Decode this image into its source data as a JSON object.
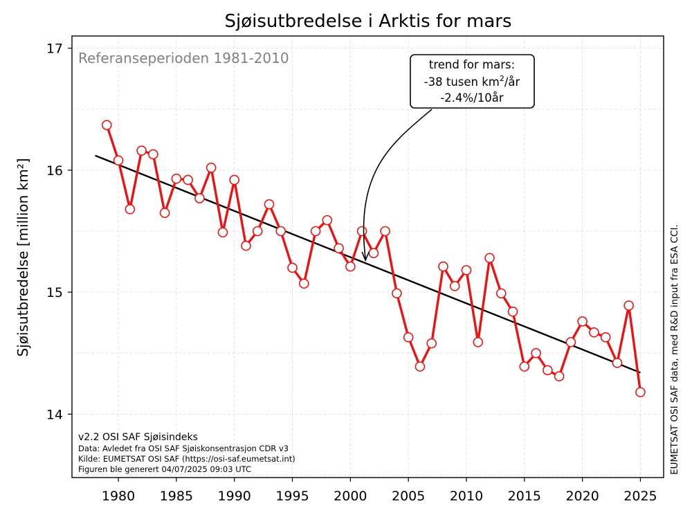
{
  "chart_data": {
    "type": "line",
    "title": "Sjøisutbredelse i Arktis for mars",
    "xlabel": "",
    "ylabel": "Sjøisutbredelse [million km²]",
    "xlim": [
      1976,
      2027
    ],
    "ylim": [
      13.48,
      17.1
    ],
    "xticks": [
      1980,
      1985,
      1990,
      1995,
      2000,
      2005,
      2010,
      2015,
      2020,
      2025
    ],
    "yticks": [
      14,
      15,
      16,
      17
    ],
    "grid": true,
    "reference_text": "Referanseperioden 1981-2010",
    "series": [
      {
        "name": "Sjøisutbredelse mars",
        "color": "#ee1111",
        "x": [
          1979,
          1980,
          1981,
          1982,
          1983,
          1984,
          1985,
          1986,
          1987,
          1988,
          1989,
          1990,
          1991,
          1992,
          1993,
          1994,
          1995,
          1996,
          1997,
          1998,
          1999,
          2000,
          2001,
          2002,
          2003,
          2004,
          2005,
          2006,
          2007,
          2008,
          2009,
          2010,
          2011,
          2012,
          2013,
          2014,
          2015,
          2016,
          2017,
          2018,
          2019,
          2020,
          2021,
          2022,
          2023,
          2024,
          2025
        ],
        "values": [
          16.37,
          16.08,
          15.68,
          16.16,
          16.13,
          15.65,
          15.93,
          15.92,
          15.77,
          16.02,
          15.49,
          15.92,
          15.38,
          15.5,
          15.72,
          15.5,
          15.2,
          15.07,
          15.5,
          15.59,
          15.36,
          15.21,
          15.5,
          15.32,
          15.5,
          14.99,
          14.63,
          14.39,
          14.58,
          15.21,
          15.05,
          15.18,
          14.59,
          15.28,
          14.99,
          14.84,
          14.39,
          14.5,
          14.36,
          14.31,
          14.59,
          14.76,
          14.67,
          14.63,
          14.42,
          14.89,
          14.18
        ]
      }
    ],
    "trend_line": {
      "color": "#000000",
      "x": [
        1978,
        2025
      ],
      "values": [
        16.12,
        14.34
      ]
    },
    "annotation": {
      "line1": "trend for mars:",
      "line2_prefix": "-38 tusen km",
      "line2_sup": "2",
      "line2_suffix": "/år",
      "line3": "-2.4%/10år",
      "target_x": 2001.3,
      "target_y": 15.25
    },
    "credits": {
      "version": "v2.2 OSI SAF Sjøisindeks",
      "data": "Data: Avledet fra OSI SAF Sjøiskonsentrasjon CDR v3",
      "source": "Kilde: EUMETSAT OSI SAF (https://osi-saf.eumetsat.int)",
      "generated": "Figuren ble generert 04/07/2025 09:03 UTC"
    },
    "side_note": "EUMETSAT OSI SAF data, med R&D input fra ESA CCI."
  }
}
